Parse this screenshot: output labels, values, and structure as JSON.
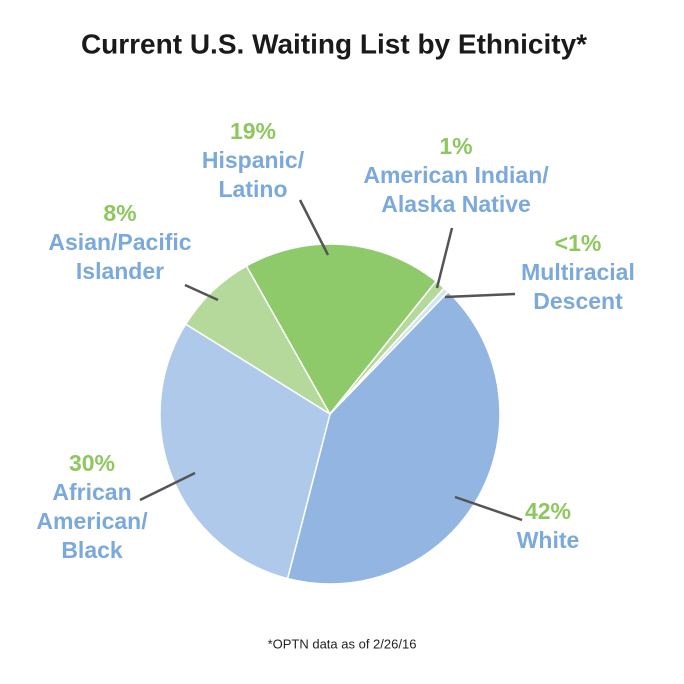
{
  "chart_data": {
    "type": "pie",
    "title": "Current U.S. Waiting List by Ethnicity*",
    "categories": [
      "White",
      "African\nAmerican/\nBlack",
      "Asian/Pacific\nIslander",
      "Hispanic/\nLatino",
      "American Indian/\nAlaska Native",
      "Multiracial\nDescent"
    ],
    "values": [
      42,
      30,
      8,
      19,
      1,
      0.5
    ],
    "value_labels": [
      "42%",
      "30%",
      "8%",
      "19%",
      "1%",
      "<1%"
    ],
    "colors": [
      "#92b6e1",
      "#aec9ea",
      "#b5d99a",
      "#8fca6a",
      "#b5d99a",
      "#d3e4f3"
    ],
    "footnote": "*OPTN data as of 2/26/16"
  }
}
